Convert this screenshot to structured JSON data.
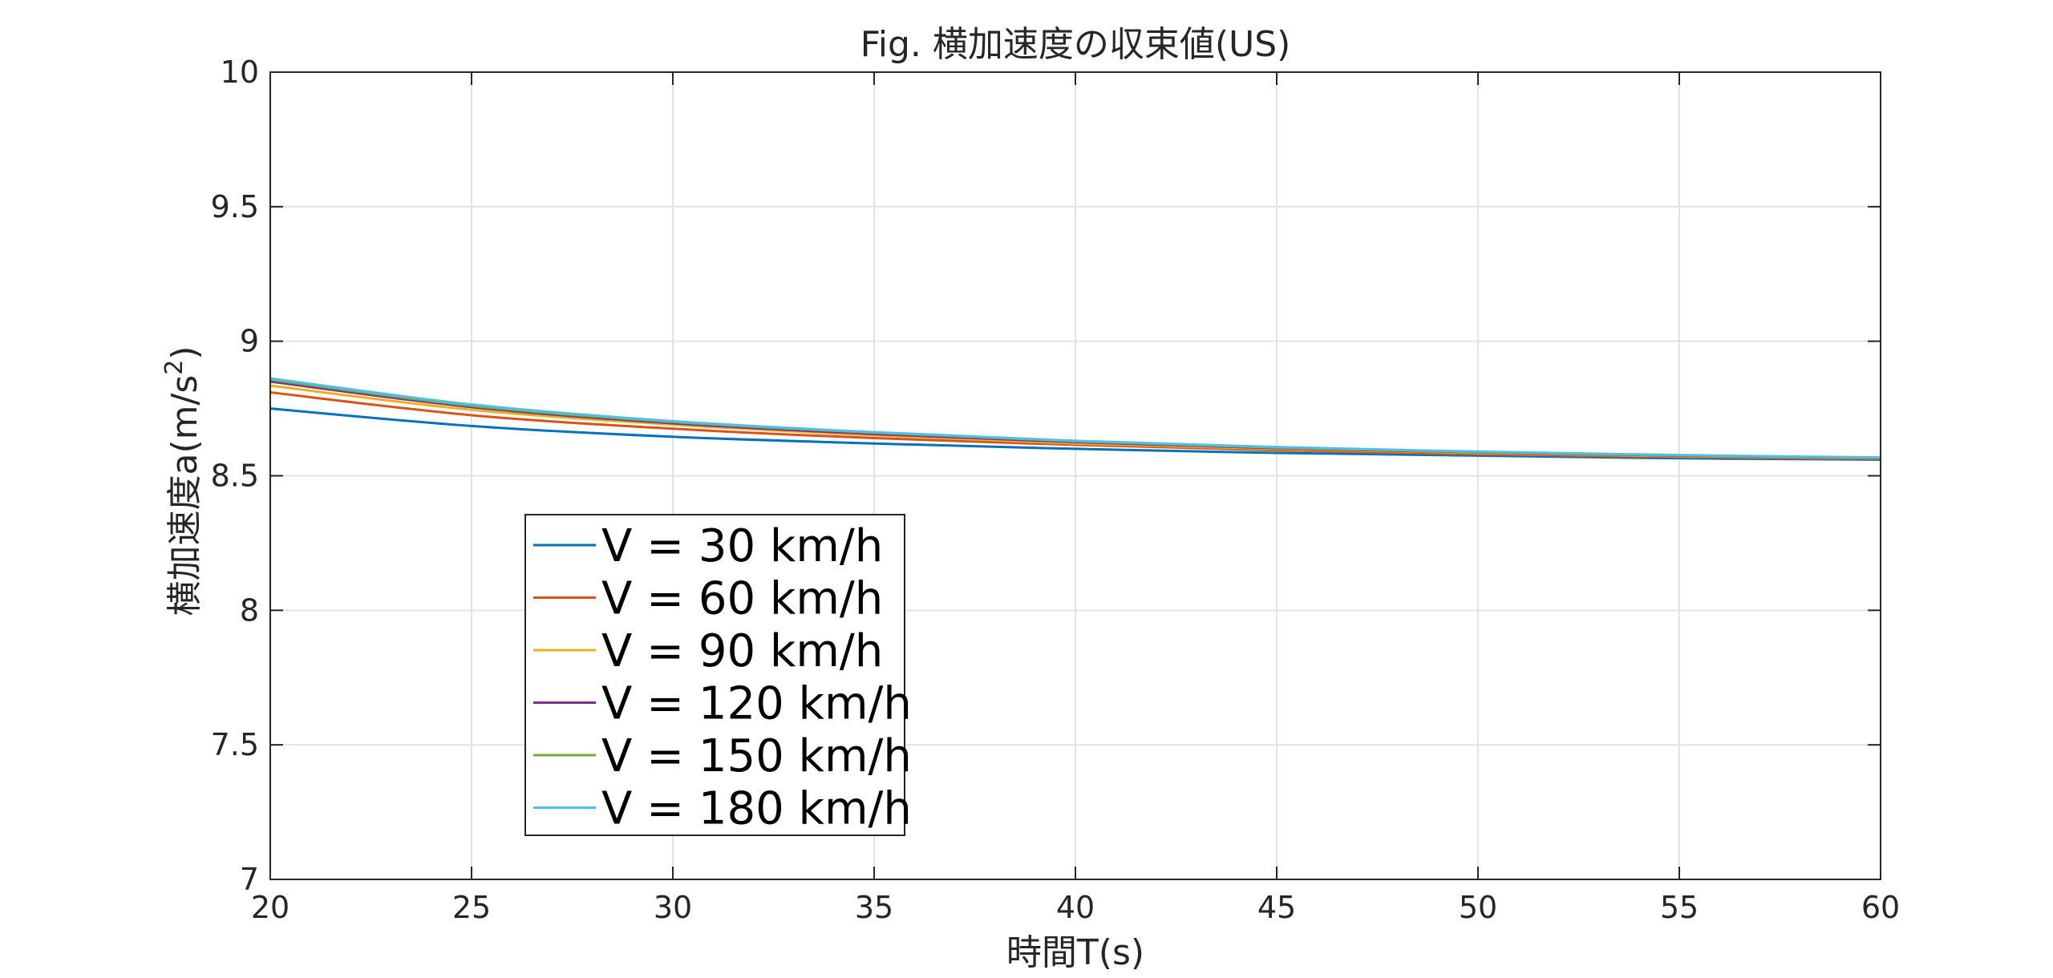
{
  "chart_data": {
    "type": "line",
    "title": "Fig. 横加速度の収束値(US)",
    "xlabel": "時間T(s)",
    "ylabel": "横加速度a(m/s²)",
    "ylabel_main": "横加速度a(m/s",
    "ylabel_sup": "2",
    "ylabel_close": ")",
    "xlim": [
      20,
      60
    ],
    "ylim": [
      7,
      10
    ],
    "xticks": [
      20,
      25,
      30,
      35,
      40,
      45,
      50,
      55,
      60
    ],
    "xtick_labels": [
      "20",
      "25",
      "30",
      "35",
      "40",
      "45",
      "50",
      "55",
      "60"
    ],
    "yticks": [
      7,
      7.5,
      8,
      8.5,
      9,
      9.5,
      10
    ],
    "ytick_labels": [
      "7",
      "7.5",
      "8",
      "8.5",
      "9",
      "9.5",
      "10"
    ],
    "grid": true,
    "legend_position": "lower-left",
    "x": [
      20,
      25,
      30,
      35,
      40,
      45,
      50,
      55,
      60
    ],
    "series": [
      {
        "name": "V = 30  km/h",
        "color": "#0072BD",
        "values": [
          8.75,
          8.685,
          8.645,
          8.62,
          8.6,
          8.585,
          8.575,
          8.565,
          8.56
        ]
      },
      {
        "name": "V = 60  km/h",
        "color": "#D95319",
        "values": [
          8.81,
          8.725,
          8.675,
          8.64,
          8.615,
          8.595,
          8.58,
          8.57,
          8.563
        ]
      },
      {
        "name": "V = 90  km/h",
        "color": "#EDB120",
        "values": [
          8.835,
          8.745,
          8.69,
          8.65,
          8.62,
          8.6,
          8.585,
          8.573,
          8.565
        ]
      },
      {
        "name": "V = 120 km/h",
        "color": "#7E2F8E",
        "values": [
          8.85,
          8.755,
          8.695,
          8.655,
          8.625,
          8.603,
          8.587,
          8.575,
          8.566
        ]
      },
      {
        "name": "V = 150 km/h",
        "color": "#77AC30",
        "values": [
          8.857,
          8.76,
          8.7,
          8.66,
          8.628,
          8.605,
          8.588,
          8.576,
          8.567
        ]
      },
      {
        "name": "V = 180 km/h",
        "color": "#4DBEEE",
        "values": [
          8.862,
          8.765,
          8.703,
          8.662,
          8.63,
          8.607,
          8.59,
          8.577,
          8.568
        ]
      }
    ]
  }
}
